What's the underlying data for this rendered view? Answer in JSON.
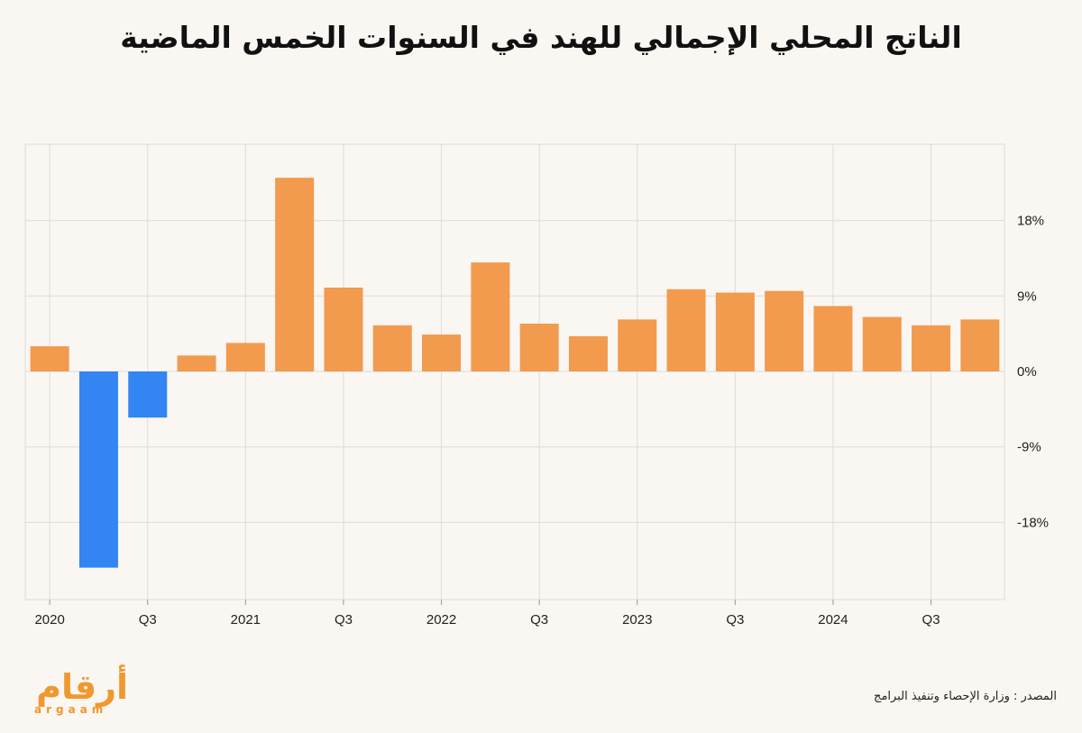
{
  "title": "الناتج المحلي الإجمالي للهند في السنوات الخمس الماضية",
  "source": "المصدر : وزارة الإحصاء وتنفيذ البرامج",
  "logo": {
    "arabic": "أرقام",
    "latin": "argaam"
  },
  "colors": {
    "positive": "#f29a4d",
    "negative": "#3385f4",
    "grid": "#dcdcdc",
    "background": "#faf6f2"
  },
  "chart_data": {
    "type": "bar",
    "title": "الناتج المحلي الإجمالي للهند في السنوات الخمس الماضية",
    "xlabel": "",
    "ylabel": "",
    "unit": "%",
    "ylim": [
      -27,
      27
    ],
    "y_ticks": [
      {
        "value": 18,
        "label": "18%"
      },
      {
        "value": 9,
        "label": "9%"
      },
      {
        "value": 0,
        "label": "0%"
      },
      {
        "value": -9,
        "label": "-9%"
      },
      {
        "value": -18,
        "label": "-18%"
      }
    ],
    "x_tick_labels": [
      "2020",
      "Q3",
      "2021",
      "Q3",
      "2022",
      "Q3",
      "2023",
      "Q3",
      "2024",
      "Q3"
    ],
    "categories": [
      "2020 Q1",
      "2020 Q2",
      "2020 Q3",
      "2020 Q4",
      "2021 Q1",
      "2021 Q2",
      "2021 Q3",
      "2021 Q4",
      "2022 Q1",
      "2022 Q2",
      "2022 Q3",
      "2022 Q4",
      "2023 Q1",
      "2023 Q2",
      "2023 Q3",
      "2023 Q4",
      "2024 Q1",
      "2024 Q2",
      "2024 Q3",
      "2024 Q4"
    ],
    "values": [
      3.0,
      -23.4,
      -5.5,
      1.9,
      3.4,
      23.1,
      10.0,
      5.5,
      4.4,
      13.0,
      5.7,
      4.2,
      6.2,
      9.8,
      9.4,
      9.6,
      7.8,
      6.5,
      5.5,
      6.2
    ],
    "grid": true,
    "legend": "none",
    "y_axis_position": "right"
  }
}
